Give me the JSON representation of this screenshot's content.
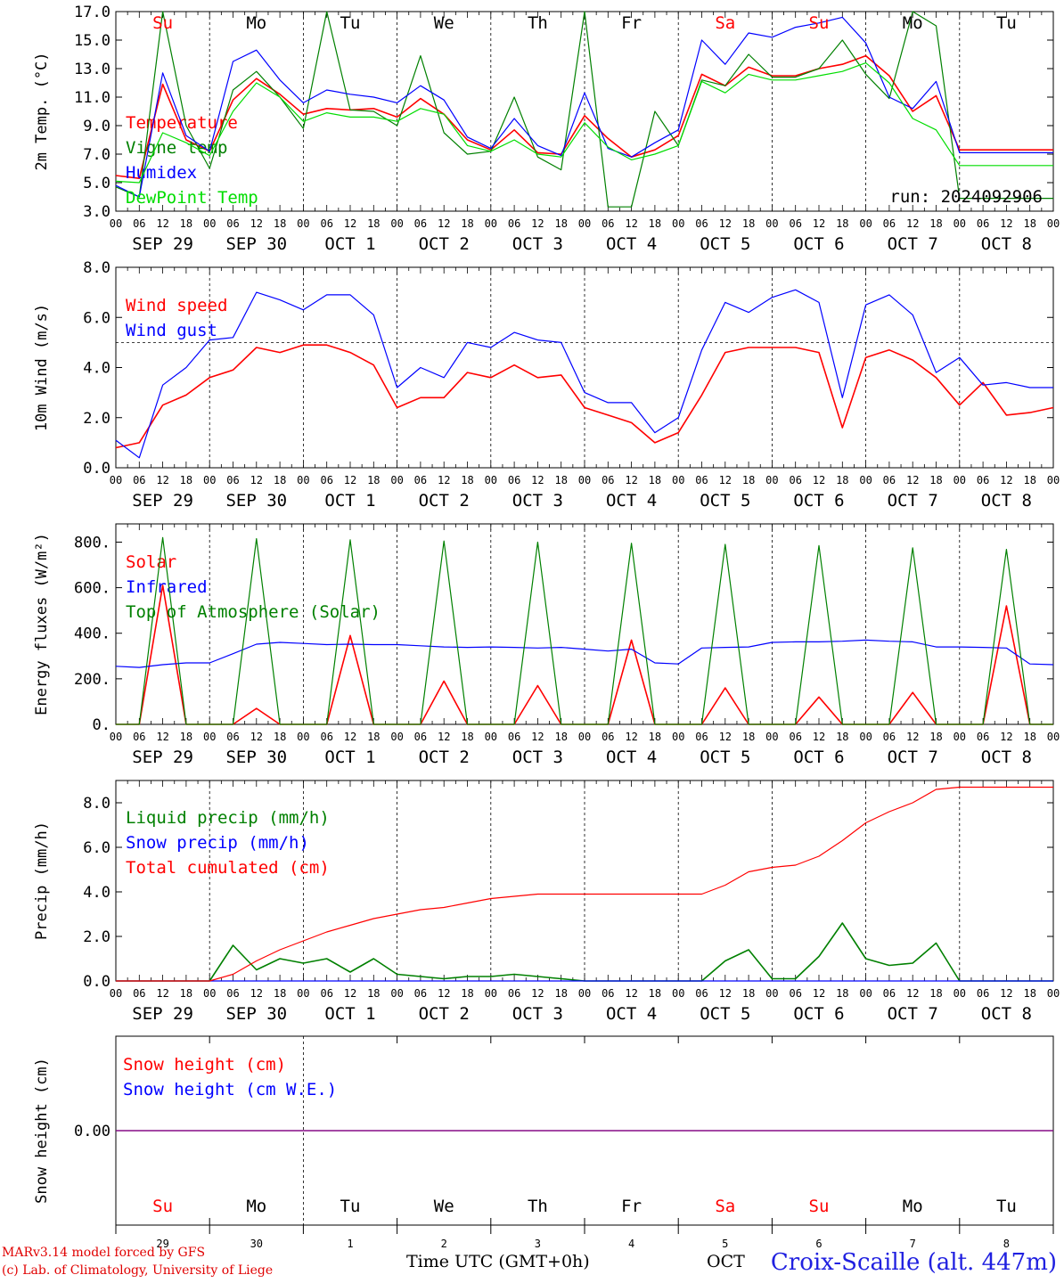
{
  "colors": {
    "red": "#ff0000",
    "blue": "#0000ff",
    "green": "#008000",
    "lightgreen": "#00dd00",
    "purple": "#800080"
  },
  "days": [
    {
      "weekday": "Su",
      "date": "SEP 29",
      "day": "29",
      "weekend": true
    },
    {
      "weekday": "Mo",
      "date": "SEP 30",
      "day": "30",
      "weekend": false
    },
    {
      "weekday": "Tu",
      "date": "OCT  1",
      "day": "1",
      "weekend": false
    },
    {
      "weekday": "We",
      "date": "OCT  2",
      "day": "2",
      "weekend": false
    },
    {
      "weekday": "Th",
      "date": "OCT  3",
      "day": "3",
      "weekend": false
    },
    {
      "weekday": "Fr",
      "date": "OCT  4",
      "day": "4",
      "weekend": false
    },
    {
      "weekday": "Sa",
      "date": "OCT  5",
      "day": "5",
      "weekend": true
    },
    {
      "weekday": "Su",
      "date": "OCT  6",
      "day": "6",
      "weekend": true
    },
    {
      "weekday": "Mo",
      "date": "OCT  7",
      "day": "7",
      "weekend": false
    },
    {
      "weekday": "Tu",
      "date": "OCT  8",
      "day": "8",
      "weekend": false
    }
  ],
  "hour_ticks": [
    "00",
    "06",
    "12",
    "18"
  ],
  "footer": {
    "credit1": "MARv3.14 model forced by GFS",
    "credit2": "(c) Lab. of Climatology, University of Liege",
    "xlabel": "Time UTC (GMT+0h)",
    "month_label": "OCT",
    "station": "Croix-Scaille (alt. 447m)"
  },
  "chart_data": [
    {
      "type": "line",
      "ylabel": "2m Temp. (°C)",
      "ylim": [
        3.0,
        17.0
      ],
      "yticks": [
        "3.0",
        "5.0",
        "7.0",
        "9.0",
        "11.0",
        "13.0",
        "15.0",
        "17.0"
      ],
      "annotation": "run: 2024092906",
      "x_days": [
        0,
        0.25,
        0.5,
        0.75,
        1,
        1.25,
        1.5,
        1.75,
        2,
        2.25,
        2.5,
        2.75,
        3,
        3.25,
        3.5,
        3.75,
        4,
        4.25,
        4.5,
        4.75,
        5,
        5.25,
        5.5,
        5.75,
        6,
        6.25,
        6.5,
        6.75,
        7,
        7.25,
        7.5,
        7.75,
        8,
        8.25,
        8.5,
        8.75,
        9,
        9.25,
        9.5,
        9.75,
        10
      ],
      "series": [
        {
          "name": "Temperature",
          "color": "#ff0000",
          "values": [
            5.5,
            5.3,
            11.9,
            8.0,
            7.2,
            10.8,
            12.3,
            11.2,
            9.8,
            10.2,
            10.1,
            10.2,
            9.6,
            10.9,
            9.8,
            8.0,
            7.3,
            8.7,
            7.1,
            7.0,
            9.7,
            8.1,
            6.8,
            7.3,
            8.3,
            12.6,
            11.8,
            13.1,
            12.5,
            12.5,
            13.0,
            13.3,
            13.9,
            12.5,
            10.0,
            11.1,
            7.3,
            7.3,
            7.3,
            7.3,
            7.3
          ]
        },
        {
          "name": "Vigne temp",
          "color": "#008000",
          "values": [
            4.7,
            4.0,
            17.0,
            9.0,
            6.0,
            11.5,
            12.8,
            11.0,
            8.8,
            17.0,
            10.1,
            10.0,
            9.0,
            13.9,
            8.5,
            7.0,
            7.2,
            11.0,
            6.8,
            5.9,
            17.0,
            3.3,
            3.3,
            10.0,
            7.6,
            12.2,
            11.8,
            14.0,
            12.4,
            12.4,
            13.0,
            15.0,
            12.6,
            10.9,
            17.0,
            16.0,
            3.9,
            3.9,
            3.9,
            3.9,
            3.9
          ]
        },
        {
          "name": "Humidex",
          "color": "#0000ff",
          "values": [
            4.8,
            4.0,
            12.7,
            8.3,
            7.2,
            13.5,
            14.3,
            12.2,
            10.6,
            11.5,
            11.2,
            11.0,
            10.6,
            11.8,
            10.8,
            8.2,
            7.4,
            9.5,
            7.6,
            6.9,
            11.3,
            7.4,
            6.8,
            7.8,
            8.7,
            15.0,
            13.3,
            15.5,
            15.2,
            15.9,
            16.2,
            16.6,
            14.8,
            11.0,
            10.2,
            12.1,
            7.1,
            7.1,
            7.1,
            7.1,
            7.1
          ]
        },
        {
          "name": "DewPoint Temp",
          "color": "#00dd00",
          "values": [
            5.1,
            5.0,
            8.5,
            7.8,
            6.9,
            10.0,
            12.0,
            11.0,
            9.3,
            9.9,
            9.6,
            9.6,
            9.3,
            10.2,
            9.8,
            7.6,
            7.2,
            8.0,
            7.0,
            6.8,
            9.2,
            7.5,
            6.6,
            7.0,
            7.6,
            12.1,
            11.3,
            12.6,
            12.2,
            12.2,
            12.5,
            12.8,
            13.4,
            12.0,
            9.5,
            8.7,
            6.2,
            6.2,
            6.2,
            6.2,
            6.2
          ]
        }
      ]
    },
    {
      "type": "line",
      "ylabel": "10m Wind (m/s)",
      "ylim": [
        0.0,
        8.0
      ],
      "yticks": [
        "0.0",
        "2.0",
        "4.0",
        "6.0",
        "8.0"
      ],
      "reference_line": 5.0,
      "x_days": [
        0,
        0.25,
        0.5,
        0.75,
        1,
        1.25,
        1.5,
        1.75,
        2,
        2.25,
        2.5,
        2.75,
        3,
        3.25,
        3.5,
        3.75,
        4,
        4.25,
        4.5,
        4.75,
        5,
        5.25,
        5.5,
        5.75,
        6,
        6.25,
        6.5,
        6.75,
        7,
        7.25,
        7.5,
        7.75,
        8,
        8.25,
        8.5,
        8.75,
        9,
        9.25,
        9.5,
        9.75,
        10
      ],
      "series": [
        {
          "name": "Wind speed",
          "color": "#ff0000",
          "values": [
            0.8,
            1.0,
            2.5,
            2.9,
            3.6,
            3.9,
            4.8,
            4.6,
            4.9,
            4.9,
            4.6,
            4.1,
            2.4,
            2.8,
            2.8,
            3.8,
            3.6,
            4.1,
            3.6,
            3.7,
            2.4,
            2.1,
            1.8,
            1.0,
            1.4,
            2.9,
            4.6,
            4.8,
            4.8,
            4.8,
            4.6,
            1.6,
            4.4,
            4.7,
            4.3,
            3.6,
            2.5,
            3.4,
            2.1,
            2.2,
            2.4
          ]
        },
        {
          "name": "Wind gust",
          "color": "#0000ff",
          "values": [
            1.1,
            0.4,
            3.3,
            4.0,
            5.1,
            5.2,
            7.0,
            6.7,
            6.3,
            6.9,
            6.9,
            6.1,
            3.2,
            4.0,
            3.6,
            5.0,
            4.8,
            5.4,
            5.1,
            5.0,
            3.0,
            2.6,
            2.6,
            1.4,
            2.0,
            4.7,
            6.6,
            6.2,
            6.8,
            7.1,
            6.6,
            2.8,
            6.5,
            6.9,
            6.1,
            3.8,
            4.4,
            3.3,
            3.4,
            3.2,
            3.2
          ]
        }
      ]
    },
    {
      "type": "line",
      "ylabel": "Energy fluxes (W/m²)",
      "ylim": [
        0,
        880
      ],
      "yticks": [
        "0.",
        "200.",
        "400.",
        "600.",
        "800."
      ],
      "x_days": [
        0,
        0.25,
        0.5,
        0.75,
        1,
        1.25,
        1.5,
        1.75,
        2,
        2.25,
        2.5,
        2.75,
        3,
        3.25,
        3.5,
        3.75,
        4,
        4.25,
        4.5,
        4.75,
        5,
        5.25,
        5.5,
        5.75,
        6,
        6.25,
        6.5,
        6.75,
        7,
        7.25,
        7.5,
        7.75,
        8,
        8.25,
        8.5,
        8.75,
        9,
        9.25,
        9.5,
        9.75,
        10
      ],
      "series": [
        {
          "name": "Solar",
          "color": "#ff0000",
          "values": [
            0,
            0,
            610,
            0,
            0,
            0,
            70,
            0,
            0,
            0,
            390,
            0,
            0,
            0,
            190,
            0,
            0,
            0,
            170,
            0,
            0,
            0,
            370,
            0,
            0,
            0,
            160,
            0,
            0,
            0,
            120,
            0,
            0,
            0,
            140,
            0,
            0,
            0,
            520,
            0,
            0
          ]
        },
        {
          "name": "Infrared",
          "color": "#0000ff",
          "values": [
            255,
            250,
            262,
            270,
            270,
            310,
            352,
            360,
            355,
            350,
            352,
            350,
            350,
            345,
            340,
            338,
            340,
            338,
            335,
            338,
            330,
            322,
            330,
            270,
            265,
            335,
            338,
            340,
            360,
            362,
            362,
            365,
            370,
            365,
            362,
            340,
            340,
            338,
            335,
            265,
            262
          ]
        },
        {
          "name": "Top of Atmosphere (Solar)",
          "color": "#008000",
          "values": [
            0,
            0,
            820,
            0,
            0,
            0,
            815,
            0,
            0,
            0,
            810,
            0,
            0,
            0,
            805,
            0,
            0,
            0,
            800,
            0,
            0,
            0,
            795,
            0,
            0,
            0,
            790,
            0,
            0,
            0,
            785,
            0,
            0,
            0,
            775,
            0,
            0,
            0,
            768,
            0,
            0
          ]
        }
      ]
    },
    {
      "type": "line",
      "ylabel": "Precip (mm/h)",
      "ylim": [
        0.0,
        9.0
      ],
      "yticks": [
        "0.0",
        "2.0",
        "4.0",
        "6.0",
        "8.0"
      ],
      "x_days": [
        0,
        0.25,
        0.5,
        0.75,
        1,
        1.25,
        1.5,
        1.75,
        2,
        2.25,
        2.5,
        2.75,
        3,
        3.25,
        3.5,
        3.75,
        4,
        4.25,
        4.5,
        4.75,
        5,
        5.25,
        5.5,
        5.75,
        6,
        6.25,
        6.5,
        6.75,
        7,
        7.25,
        7.5,
        7.75,
        8,
        8.25,
        8.5,
        8.75,
        9,
        9.25,
        9.5,
        9.75,
        10
      ],
      "series": [
        {
          "name": "Liquid precip (mm/h)",
          "color": "#008000",
          "values": [
            0,
            0,
            0,
            0,
            0,
            1.6,
            0.5,
            1.0,
            0.8,
            1.0,
            0.4,
            1.0,
            0.3,
            0.2,
            0.1,
            0.2,
            0.2,
            0.3,
            0.2,
            0.1,
            0,
            0,
            0,
            0,
            0,
            0,
            0.9,
            1.4,
            0.1,
            0.1,
            1.1,
            2.6,
            1.0,
            0.7,
            0.8,
            1.7,
            0,
            0,
            0,
            0,
            0
          ]
        },
        {
          "name": "Snow precip (mm/h)",
          "color": "#0000ff",
          "values": [
            0,
            0,
            0,
            0,
            0,
            0,
            0,
            0,
            0,
            0,
            0,
            0,
            0,
            0,
            0,
            0,
            0,
            0,
            0,
            0,
            0,
            0,
            0,
            0,
            0,
            0,
            0,
            0,
            0,
            0,
            0,
            0,
            0,
            0,
            0,
            0,
            0,
            0,
            0,
            0,
            0
          ]
        },
        {
          "name": "Total cumulated (cm)",
          "color": "#ff0000",
          "values": [
            0,
            0,
            0,
            0,
            0,
            0.3,
            0.9,
            1.4,
            1.8,
            2.2,
            2.5,
            2.8,
            3.0,
            3.2,
            3.3,
            3.5,
            3.7,
            3.8,
            3.9,
            3.9,
            3.9,
            3.9,
            3.9,
            3.9,
            3.9,
            3.9,
            4.3,
            4.9,
            5.1,
            5.2,
            5.6,
            6.3,
            7.1,
            7.6,
            8.0,
            8.6,
            8.7,
            8.7,
            8.7,
            8.7,
            8.7
          ]
        }
      ]
    },
    {
      "type": "line",
      "ylabel": "Snow height (cm)",
      "ylim": [
        -1.0,
        1.0
      ],
      "yticks": [
        "0.00"
      ],
      "x_days": [
        0,
        10
      ],
      "series": [
        {
          "name": "Snow height (cm)",
          "color": "#ff0000",
          "values": [
            0,
            0
          ]
        },
        {
          "name": "Snow height (cm W.E.)",
          "color": "#0000ff",
          "values": [
            0,
            0
          ]
        }
      ]
    }
  ]
}
